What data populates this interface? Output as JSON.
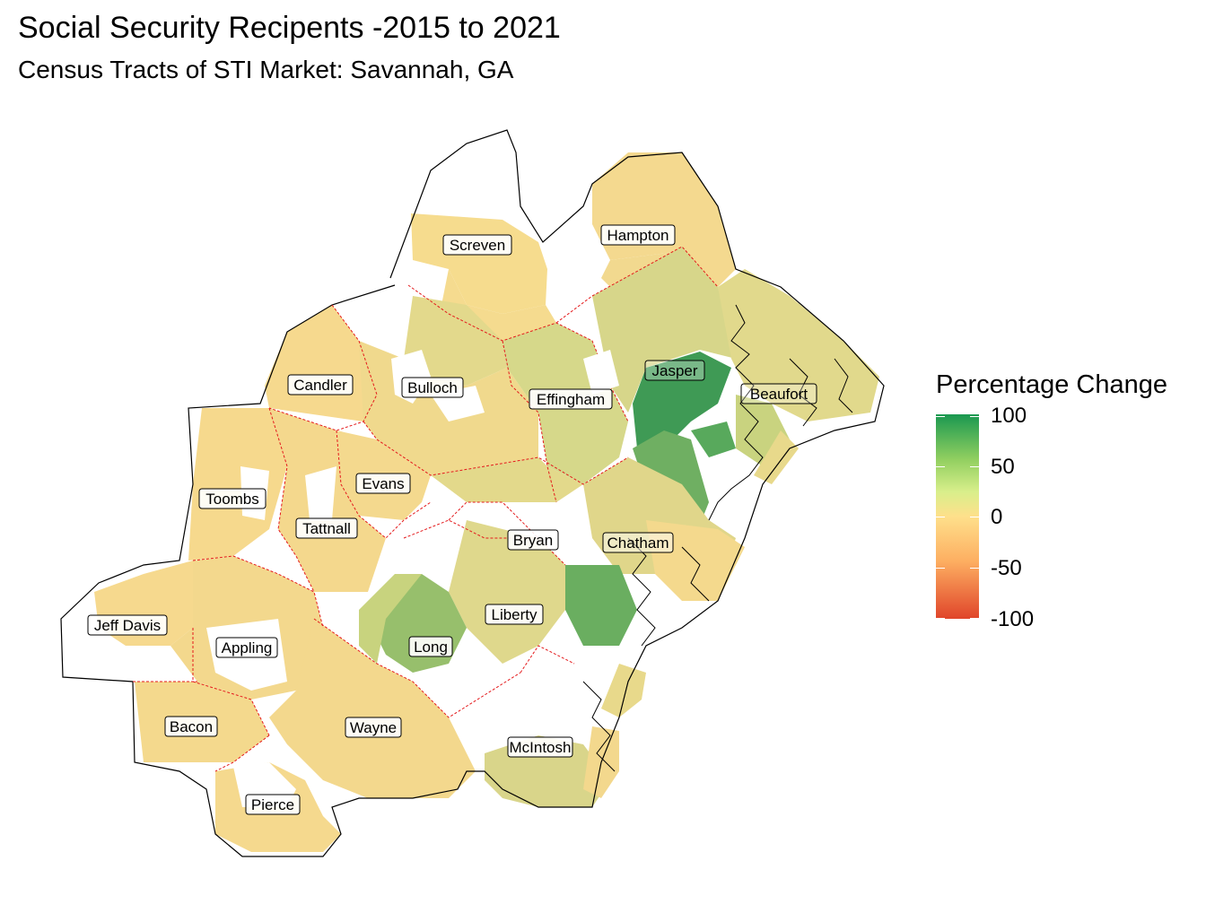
{
  "title": "Social Security Recipents -2015 to 2021",
  "subtitle": "Census Tracts of STI Market: Savannah, GA",
  "legend": {
    "title": "Percentage Change",
    "ticks": [
      "100",
      "50",
      "0",
      "-50",
      "-100"
    ],
    "range": [
      -100,
      100
    ],
    "colors": [
      "#1a9850",
      "#91cf60",
      "#d9ef8b",
      "#fee08b",
      "#fdae61",
      "#e0452a"
    ]
  },
  "counties": [
    {
      "name": "Screven",
      "label": "Screven"
    },
    {
      "name": "Hampton",
      "label": "Hampton"
    },
    {
      "name": "Candler",
      "label": "Candler"
    },
    {
      "name": "Bulloch",
      "label": "Bulloch"
    },
    {
      "name": "Effingham",
      "label": "Effingham"
    },
    {
      "name": "Jasper",
      "label": "Jasper"
    },
    {
      "name": "Beaufort",
      "label": "Beaufort"
    },
    {
      "name": "Toombs",
      "label": "Toombs"
    },
    {
      "name": "Evans",
      "label": "Evans"
    },
    {
      "name": "Tattnall",
      "label": "Tattnall"
    },
    {
      "name": "Bryan",
      "label": "Bryan"
    },
    {
      "name": "Chatham",
      "label": "Chatham"
    },
    {
      "name": "Jeff Davis",
      "label": "Jeff Davis"
    },
    {
      "name": "Appling",
      "label": "Appling"
    },
    {
      "name": "Liberty",
      "label": "Liberty"
    },
    {
      "name": "Long",
      "label": "Long"
    },
    {
      "name": "Bacon",
      "label": "Bacon"
    },
    {
      "name": "Wayne",
      "label": "Wayne"
    },
    {
      "name": "McIntosh",
      "label": "McIntosh"
    },
    {
      "name": "Pierce",
      "label": "Pierce"
    }
  ]
}
